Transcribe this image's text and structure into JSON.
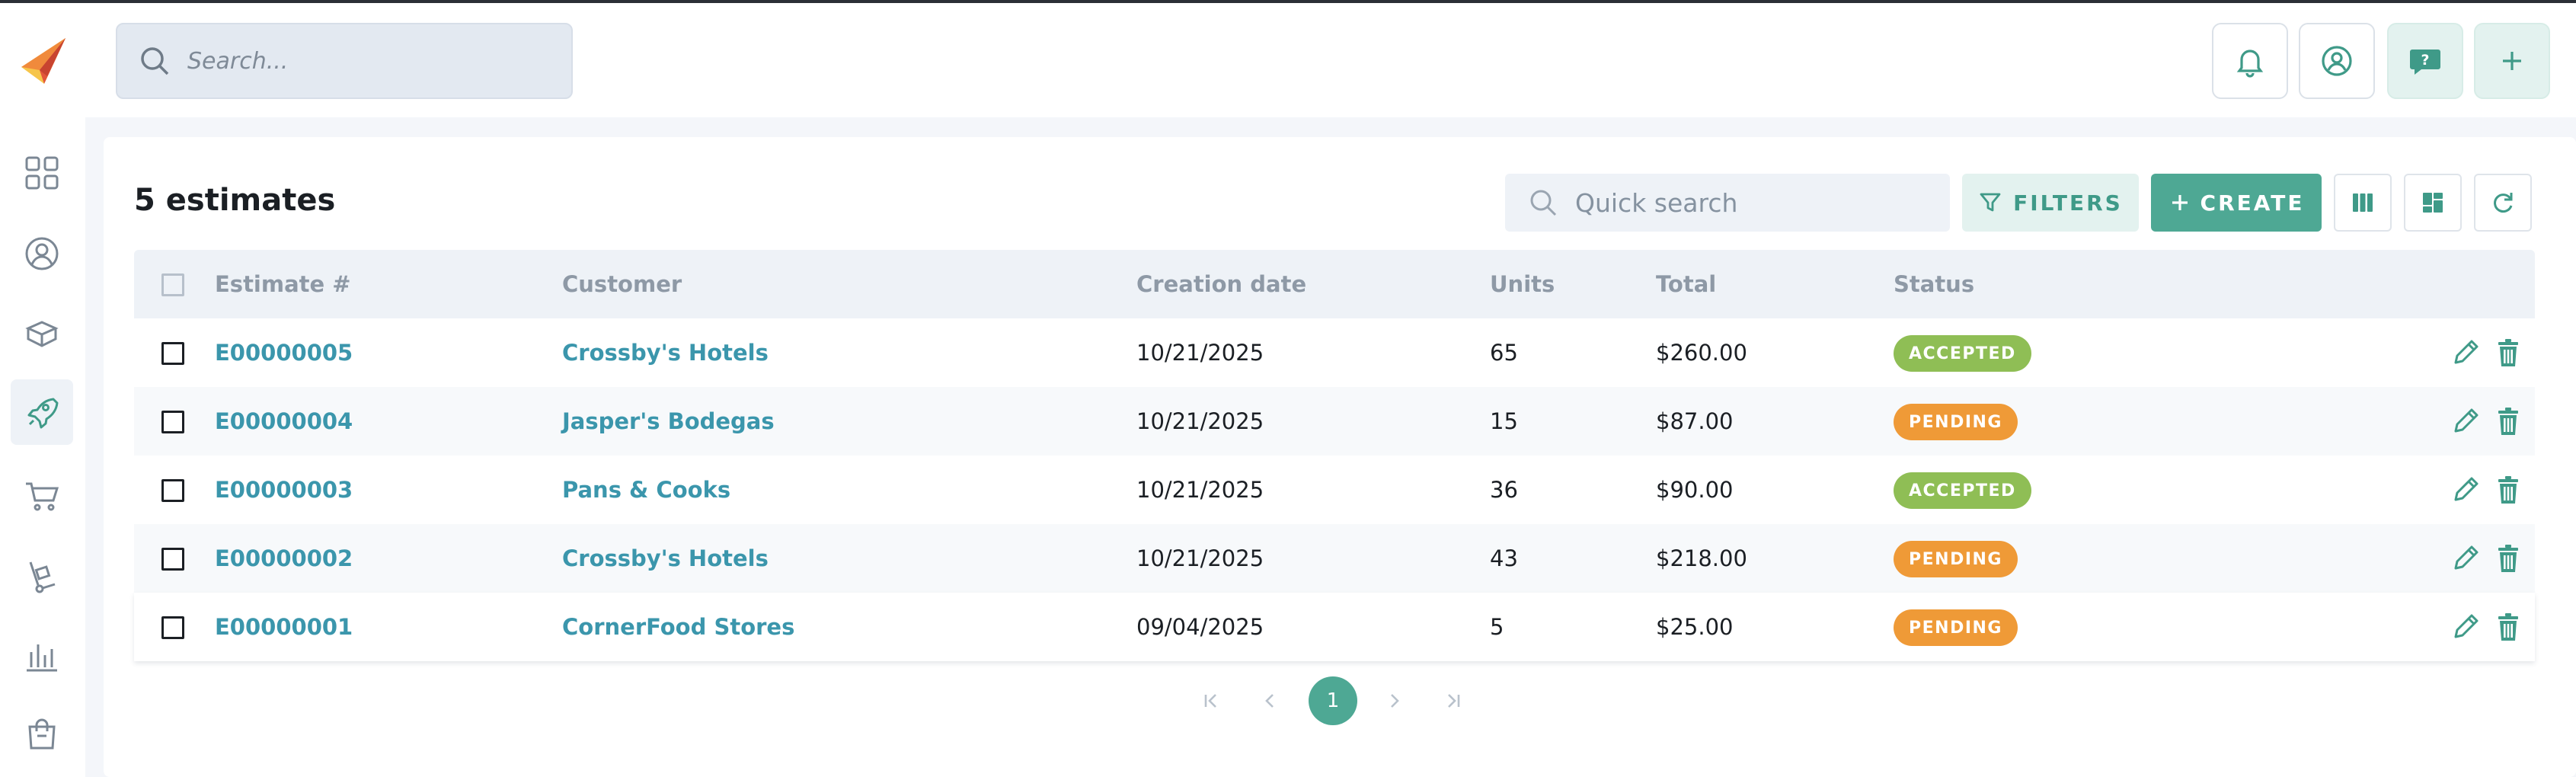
{
  "header": {
    "search_placeholder": "Search...",
    "icons": [
      "bell-icon",
      "user-circle-icon",
      "help-chat-icon",
      "plus-icon"
    ]
  },
  "sidebar": {
    "items": [
      {
        "icon": "dashboard-grid-icon",
        "active": false
      },
      {
        "icon": "user-circle-icon",
        "active": false
      },
      {
        "icon": "box-icon",
        "active": false
      },
      {
        "icon": "rocket-icon",
        "active": true
      },
      {
        "icon": "cart-icon",
        "active": false
      },
      {
        "icon": "hand-truck-icon",
        "active": false
      },
      {
        "icon": "bar-chart-icon",
        "active": false
      },
      {
        "icon": "shopping-bag-icon",
        "active": false
      }
    ]
  },
  "main": {
    "title": "5 estimates",
    "quick_search_placeholder": "Quick search",
    "filters_label": "FILTERS",
    "create_label": "CREATE",
    "columns": [
      "Estimate #",
      "Customer",
      "Creation date",
      "Units",
      "Total",
      "Status"
    ],
    "rows": [
      {
        "estimate": "E00000005",
        "customer": "Crossby's Hotels",
        "date": "10/21/2025",
        "units": "65",
        "total": "$260.00",
        "status": "ACCEPTED"
      },
      {
        "estimate": "E00000004",
        "customer": "Jasper's Bodegas",
        "date": "10/21/2025",
        "units": "15",
        "total": "$87.00",
        "status": "PENDING"
      },
      {
        "estimate": "E00000003",
        "customer": "Pans & Cooks",
        "date": "10/21/2025",
        "units": "36",
        "total": "$90.00",
        "status": "ACCEPTED"
      },
      {
        "estimate": "E00000002",
        "customer": "Crossby's Hotels",
        "date": "10/21/2025",
        "units": "43",
        "total": "$218.00",
        "status": "PENDING"
      },
      {
        "estimate": "E00000001",
        "customer": "CornerFood Stores",
        "date": "09/04/2025",
        "units": "5",
        "total": "$25.00",
        "status": "PENDING"
      }
    ],
    "pagination": {
      "current_page": "1"
    }
  },
  "colors": {
    "accent": "#4ea894",
    "link": "#3b96ac",
    "accepted": "#8fbe55",
    "pending": "#ef9a37"
  }
}
